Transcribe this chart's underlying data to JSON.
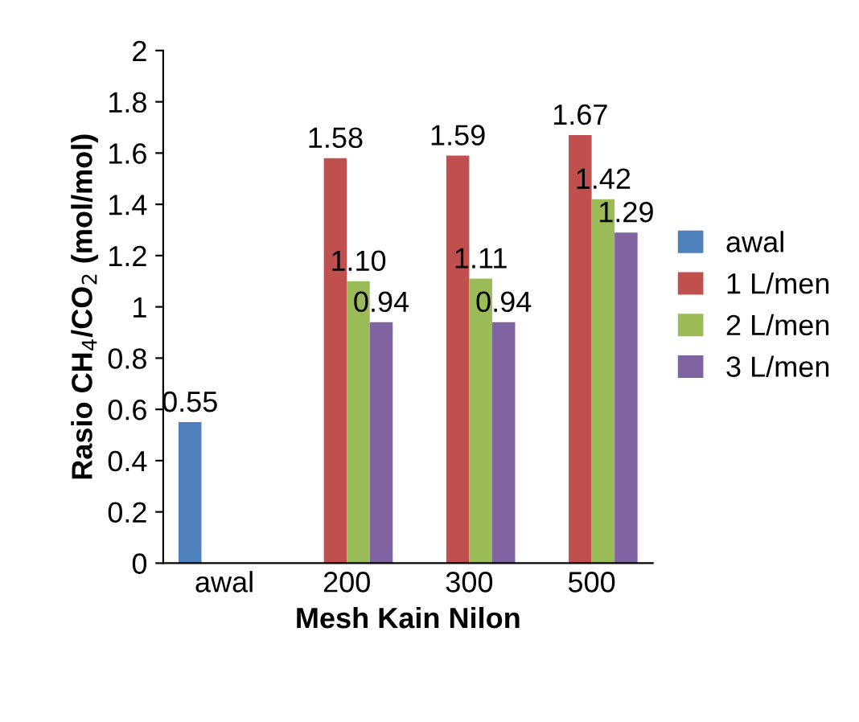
{
  "chart_data": {
    "type": "bar",
    "xlabel": "Mesh Kain Nilon",
    "ylabel": "Rasio CH$_{4}$/CO$_{2}$ (mol/mol)",
    "categories": [
      "awal",
      "200",
      "300",
      "500"
    ],
    "series": [
      {
        "name": "awal",
        "color": "#4f81bd",
        "values": [
          0.55,
          null,
          null,
          null
        ],
        "value_labels": [
          "0.55",
          null,
          null,
          null
        ]
      },
      {
        "name": "1 L/men",
        "color": "#c0504d",
        "values": [
          null,
          1.58,
          1.59,
          1.67
        ],
        "value_labels": [
          null,
          "1.58",
          "1.59",
          "1.67"
        ]
      },
      {
        "name": "2 L/men",
        "color": "#9bbb59",
        "values": [
          null,
          1.1,
          1.11,
          1.42
        ],
        "value_labels": [
          null,
          "1.10",
          "1.11",
          "1.42"
        ]
      },
      {
        "name": "3 L/men",
        "color": "#8064a2",
        "values": [
          null,
          0.94,
          0.94,
          1.29
        ],
        "value_labels": [
          null,
          "0.94",
          "0.94",
          "1.29"
        ]
      }
    ],
    "ylim": [
      0,
      2
    ],
    "yticks": [
      0,
      0.2,
      0.4,
      0.6,
      0.8,
      1,
      1.2,
      1.4,
      1.6,
      1.8,
      2
    ],
    "grid": false,
    "legend": "right"
  }
}
